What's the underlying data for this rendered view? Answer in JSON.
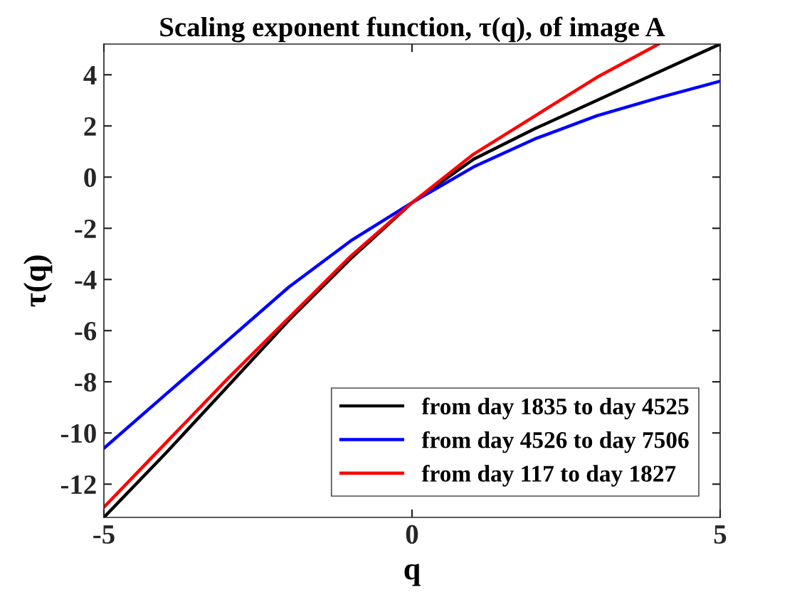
{
  "chart_data": {
    "type": "line",
    "title": "Scaling exponent function, τ(q), of image A",
    "xlabel": "q",
    "ylabel": "τ(q)",
    "x": [
      -5,
      -4,
      -3,
      -2,
      -1,
      0,
      1,
      2,
      3,
      4,
      5
    ],
    "series": [
      {
        "name": "from day 1835 to day 4525",
        "color": "#000000",
        "values": [
          -13.3,
          -10.8,
          -8.2,
          -5.6,
          -3.2,
          -1,
          0.7,
          1.9,
          3.0,
          4.1,
          5.2
        ]
      },
      {
        "name": "from day 4526 to day 7506",
        "color": "#0000ff",
        "values": [
          -10.6,
          -8.5,
          -6.4,
          -4.3,
          -2.5,
          -1,
          0.4,
          1.5,
          2.4,
          3.1,
          3.75
        ]
      },
      {
        "name": "from day 117 to day 1827",
        "color": "#ff0000",
        "values": [
          -12.9,
          -10.4,
          -7.9,
          -5.5,
          -3.1,
          -1,
          0.9,
          2.4,
          3.9,
          5.2,
          null
        ]
      }
    ],
    "xlim": [
      -5,
      5
    ],
    "ylim": [
      -13.3,
      5.2
    ],
    "xticks": [
      -5,
      0,
      5
    ],
    "yticks": [
      -12,
      -10,
      -8,
      -6,
      -4,
      -2,
      0,
      2,
      4
    ],
    "grid": false,
    "legend": "bottom right",
    "marker": "none",
    "line_style": "solid"
  }
}
